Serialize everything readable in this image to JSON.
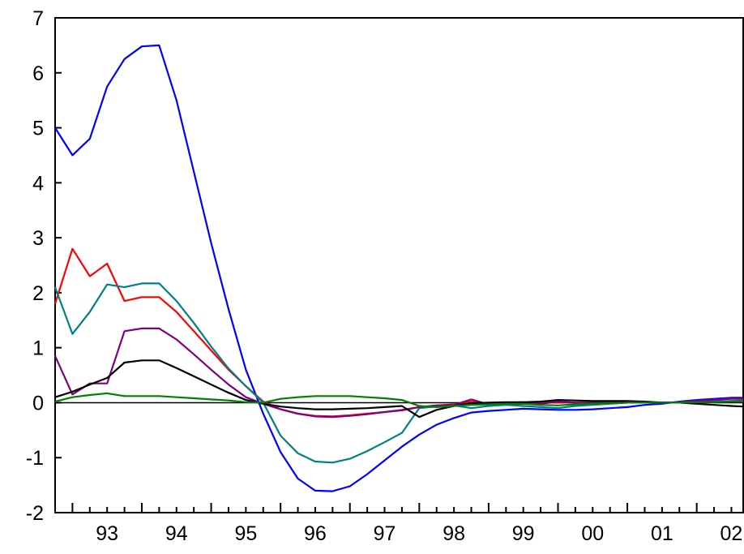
{
  "chart_data": {
    "type": "line",
    "title": "",
    "xlabel": "",
    "ylabel": "",
    "xlim": [
      1992.75,
      2002.67
    ],
    "ylim": [
      -2,
      7
    ],
    "y_ticks": [
      -2,
      -1,
      0,
      1,
      2,
      3,
      4,
      5,
      6,
      7
    ],
    "y_tick_labels": [
      "-2",
      "-1",
      "0",
      "1",
      "2",
      "3",
      "4",
      "5",
      "6",
      "7"
    ],
    "x_tick_labels": [
      "93",
      "94",
      "95",
      "96",
      "97",
      "98",
      "99",
      "00",
      "01",
      "02"
    ],
    "grid": false,
    "legend": "none",
    "zero_line": true,
    "x": [
      1992.75,
      1993.0,
      1993.25,
      1993.5,
      1993.75,
      1994.0,
      1994.25,
      1994.5,
      1994.75,
      1995.0,
      1995.25,
      1995.5,
      1995.75,
      1996.0,
      1996.25,
      1996.5,
      1996.75,
      1997.0,
      1997.25,
      1997.5,
      1997.75,
      1998.0,
      1998.25,
      1998.5,
      1998.75,
      1999.0,
      1999.25,
      1999.5,
      1999.75,
      2000.0,
      2000.25,
      2000.5,
      2000.75,
      2001.0,
      2001.25,
      2001.5,
      2001.75,
      2002.0,
      2002.25,
      2002.5,
      2002.67
    ],
    "series": [
      {
        "color": "#0000ff",
        "values": [
          5.0,
          4.5,
          4.8,
          5.75,
          6.25,
          6.48,
          6.5,
          5.5,
          4.2,
          2.9,
          1.7,
          0.6,
          -0.2,
          -0.9,
          -1.38,
          -1.6,
          -1.61,
          -1.52,
          -1.3,
          -1.05,
          -0.8,
          -0.58,
          -0.4,
          -0.28,
          -0.18,
          -0.15,
          -0.13,
          -0.11,
          -0.12,
          -0.13,
          -0.13,
          -0.12,
          -0.1,
          -0.08,
          -0.04,
          -0.02,
          0.02,
          0.05,
          0.07,
          0.09,
          0.09
        ]
      },
      {
        "color": "#ff0000",
        "values": [
          1.8,
          2.8,
          2.3,
          2.53,
          1.85,
          1.92,
          1.92,
          1.65,
          1.3,
          0.95,
          0.6,
          0.3,
          0.02,
          -0.12,
          -0.2,
          -0.24,
          -0.25,
          -0.23,
          -0.2,
          -0.17,
          -0.13,
          -0.08,
          -0.05,
          -0.03,
          0.02,
          -0.02,
          -0.03,
          -0.02,
          0.01,
          0.0,
          0.0,
          0.0,
          0.0,
          0.0,
          0.01,
          0.0,
          0.0,
          0.01,
          0.02,
          0.03,
          0.04
        ]
      },
      {
        "color": "#008080",
        "values": [
          2.1,
          1.25,
          1.65,
          2.15,
          2.1,
          2.17,
          2.17,
          1.85,
          1.45,
          1.02,
          0.62,
          0.3,
          0.0,
          -0.6,
          -0.92,
          -1.07,
          -1.09,
          -1.02,
          -0.88,
          -0.72,
          -0.55,
          -0.1,
          -0.07,
          -0.05,
          -0.1,
          -0.06,
          -0.04,
          -0.06,
          -0.08,
          -0.1,
          -0.06,
          -0.04,
          -0.02,
          0.0,
          0.0,
          0.0,
          0.0,
          0.01,
          0.02,
          0.03,
          0.03
        ]
      },
      {
        "color": "#800080",
        "values": [
          0.85,
          0.15,
          0.35,
          0.35,
          1.3,
          1.35,
          1.35,
          1.15,
          0.88,
          0.6,
          0.33,
          0.1,
          -0.02,
          -0.12,
          -0.2,
          -0.25,
          -0.26,
          -0.24,
          -0.21,
          -0.17,
          -0.14,
          -0.08,
          -0.05,
          -0.04,
          0.06,
          -0.03,
          0.0,
          0.01,
          -0.02,
          0.02,
          0.0,
          0.0,
          0.0,
          0.0,
          0.0,
          0.0,
          0.01,
          0.03,
          0.05,
          0.07,
          0.07
        ]
      },
      {
        "color": "#000000",
        "values": [
          0.1,
          0.2,
          0.33,
          0.45,
          0.73,
          0.77,
          0.77,
          0.63,
          0.48,
          0.33,
          0.18,
          0.05,
          -0.02,
          -0.07,
          -0.1,
          -0.12,
          -0.12,
          -0.11,
          -0.1,
          -0.08,
          -0.06,
          -0.26,
          -0.13,
          -0.06,
          -0.01,
          0.0,
          0.01,
          0.01,
          0.02,
          0.05,
          0.04,
          0.03,
          0.03,
          0.03,
          0.02,
          0.0,
          0.0,
          -0.02,
          -0.04,
          -0.06,
          -0.07
        ]
      },
      {
        "color": "#008000",
        "values": [
          0.02,
          0.1,
          0.14,
          0.17,
          0.12,
          0.12,
          0.12,
          0.1,
          0.08,
          0.06,
          0.04,
          0.01,
          0.0,
          0.07,
          0.1,
          0.12,
          0.12,
          0.12,
          0.1,
          0.08,
          0.05,
          -0.06,
          -0.08,
          -0.06,
          -0.04,
          -0.03,
          -0.02,
          -0.02,
          -0.04,
          -0.05,
          -0.03,
          -0.02,
          -0.01,
          0.0,
          0.0,
          0.0,
          0.0,
          0.01,
          0.01,
          0.02,
          0.02
        ]
      }
    ]
  }
}
